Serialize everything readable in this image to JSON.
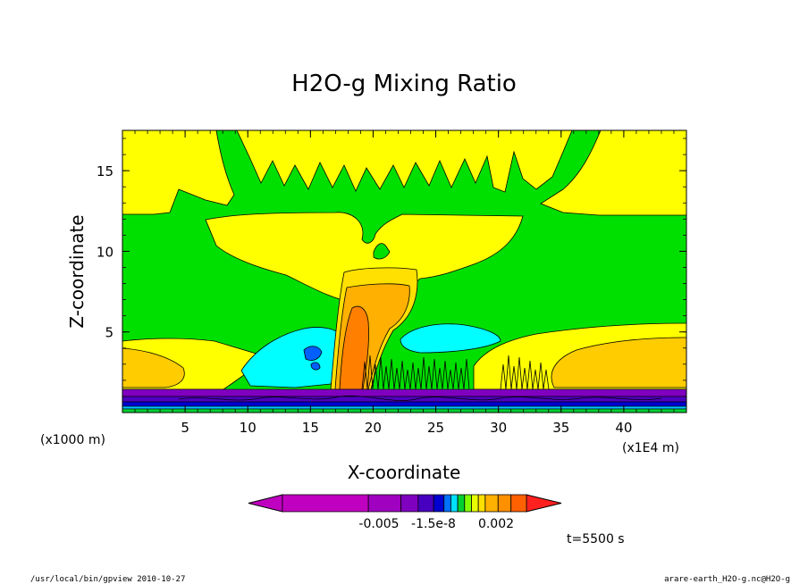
{
  "chart_data": {
    "type": "heatmap",
    "title": "H2O-g Mixing Ratio",
    "xlabel": "X-coordinate",
    "ylabel": "Z-coordinate",
    "x_unit_label": "(x1E4 m)",
    "y_unit_label": "(x1000 m)",
    "xlim": [
      0,
      45
    ],
    "ylim": [
      0,
      17.5
    ],
    "x_ticks": [
      "5",
      "10",
      "15",
      "20",
      "25",
      "30",
      "35",
      "40"
    ],
    "y_ticks": [
      "5",
      "10",
      "15"
    ],
    "colorbar": {
      "tick_labels": [
        "-0.005",
        "-1.5e-8",
        "0.002"
      ],
      "colors": [
        "#c000c0",
        "#c000c0",
        "#a000c0",
        "#8000c0",
        "#4800c0",
        "#0000d0",
        "#0070ff",
        "#00e0ff",
        "#00d030",
        "#80ff00",
        "#e8ff00",
        "#ffe000",
        "#ffb000",
        "#ff9000",
        "#ff6000",
        "#ff2020"
      ]
    },
    "time_label": "t=5500 s",
    "footer_left": "/usr/local/bin/gpview  2010-10-27",
    "footer_right": "arare-earth_H2O-g.nc@H2O-g"
  }
}
